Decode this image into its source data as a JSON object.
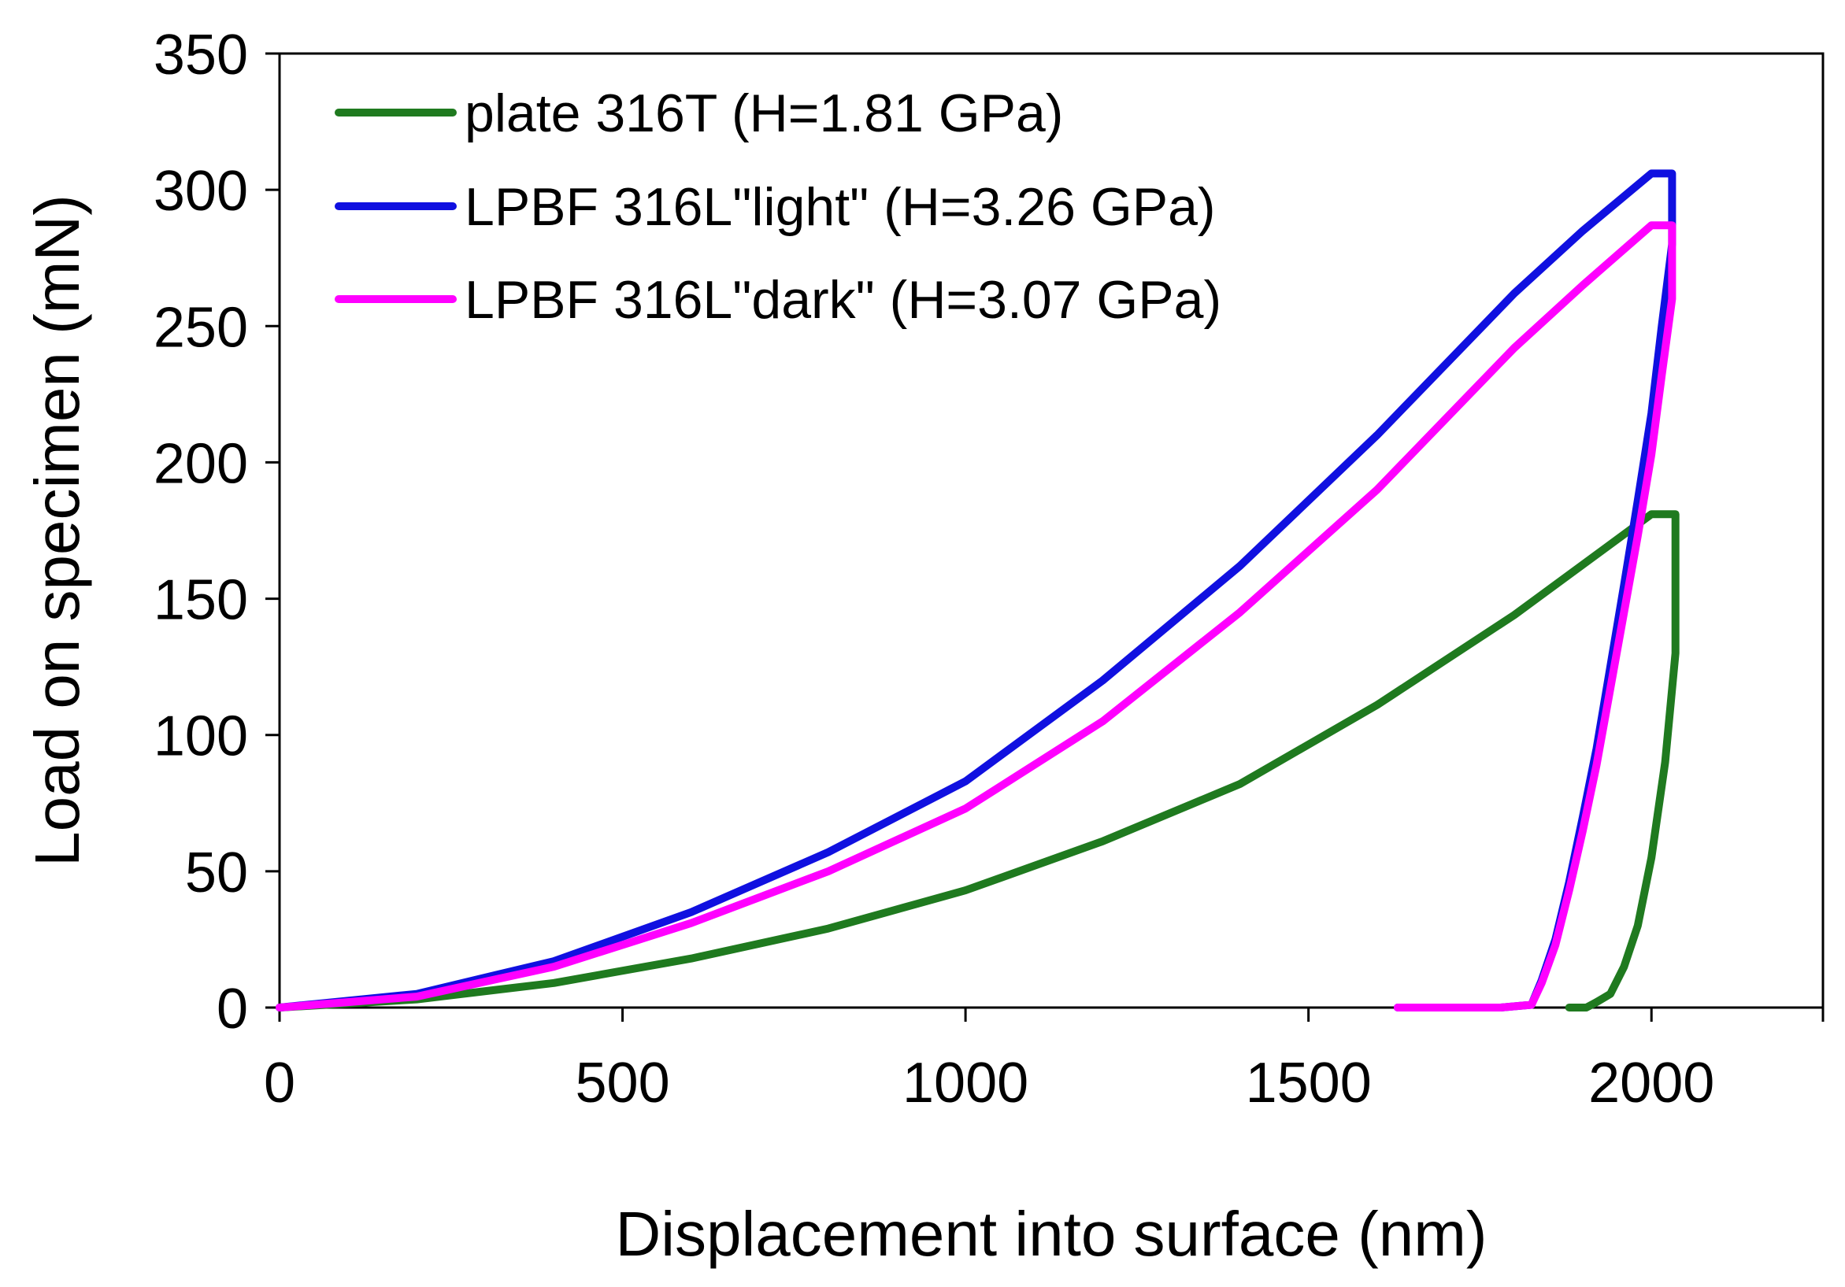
{
  "chart_data": {
    "type": "line",
    "title": "",
    "xlabel": "Displacement into surface (nm)",
    "ylabel": "Load on specimen (mN)",
    "xlim": [
      0,
      2250
    ],
    "ylim": [
      0,
      350
    ],
    "xticks": [
      0,
      500,
      1000,
      1500,
      2000
    ],
    "yticks": [
      0,
      50,
      100,
      150,
      200,
      250,
      300,
      350
    ],
    "xtick_labels": [
      "0",
      "500",
      "1000",
      "1500",
      "2000"
    ],
    "ytick_labels": [
      "0",
      "50",
      "100",
      "150",
      "200",
      "250",
      "300",
      "350"
    ],
    "grid": false,
    "legend_position": "top-left",
    "series": [
      {
        "name": "plate 316T (H=1.81 GPa)",
        "color": "#1f7a1f",
        "x": [
          0,
          200,
          400,
          600,
          800,
          1000,
          1200,
          1400,
          1600,
          1800,
          2000,
          2035,
          2035,
          2020,
          2000,
          1980,
          1960,
          1940,
          1920,
          1905,
          1880
        ],
        "y": [
          0,
          3,
          9,
          18,
          29,
          43,
          61,
          82,
          111,
          144,
          181,
          181,
          130,
          90,
          55,
          30,
          15,
          5,
          2,
          0,
          0
        ]
      },
      {
        "name": "LPBF 316L\"light\" (H=3.26 GPa)",
        "color": "#1010e0",
        "x": [
          0,
          200,
          400,
          600,
          800,
          1000,
          1200,
          1400,
          1600,
          1800,
          1900,
          2000,
          2030,
          2030,
          2015,
          2000,
          1980,
          1960,
          1940,
          1920,
          1900,
          1880,
          1860,
          1840,
          1825,
          1780,
          1700,
          1630
        ],
        "y": [
          0,
          5,
          17,
          35,
          57,
          83,
          120,
          162,
          210,
          262,
          285,
          306,
          306,
          280,
          250,
          218,
          186,
          155,
          125,
          95,
          70,
          46,
          25,
          10,
          1,
          0,
          0,
          0
        ]
      },
      {
        "name": "LPBF 316L\"dark\" (H=3.07 GPa)",
        "color": "#ff00ff",
        "x": [
          0,
          200,
          400,
          600,
          800,
          1000,
          1200,
          1400,
          1600,
          1800,
          1900,
          2000,
          2030,
          2030,
          2015,
          2000,
          1980,
          1960,
          1940,
          1920,
          1900,
          1880,
          1860,
          1840,
          1825,
          1780,
          1700,
          1630
        ],
        "y": [
          0,
          4,
          15,
          31,
          50,
          73,
          105,
          145,
          190,
          242,
          265,
          287,
          287,
          260,
          232,
          203,
          173,
          145,
          117,
          89,
          65,
          43,
          23,
          9,
          1,
          0,
          0,
          0
        ]
      }
    ]
  }
}
